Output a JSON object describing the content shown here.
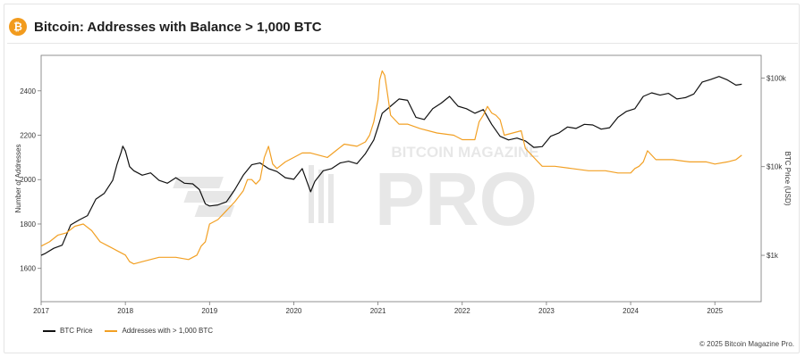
{
  "header": {
    "logo_glyph": "₿",
    "title": "Bitcoin: Addresses with Balance > 1,000 BTC"
  },
  "watermark": {
    "top_text": "BITCOIN MAGAZINE",
    "main_text": "PRO"
  },
  "credit": "© 2025 Bitcoin Magazine Pro.",
  "colors": {
    "btc_price": "#111111",
    "addresses": "#f2a024",
    "grid": "#e9e9e9",
    "axis": "#777777"
  },
  "chart_data": {
    "type": "line",
    "title": "Bitcoin: Addresses with Balance > 1,000 BTC",
    "x_tick_labels": [
      "2017",
      "2018",
      "2019",
      "2020",
      "2021",
      "2022",
      "2023",
      "2024",
      "2025"
    ],
    "xlim": [
      2017.0,
      2025.55
    ],
    "y_left": {
      "label": "Number of Addresses",
      "ticks": [
        1600,
        1800,
        2000,
        2200,
        2400
      ],
      "ylim": [
        1450,
        2560
      ]
    },
    "y_right": {
      "label": "BTC Price (USD)",
      "scale": "log",
      "ticks": [
        1000,
        10000,
        100000
      ],
      "tick_labels": [
        "$1k",
        "$10k",
        "$100k"
      ],
      "ylim": [
        300,
        180000
      ]
    },
    "grid": false,
    "legend_position": "bottom-left",
    "series": [
      {
        "name": "BTC Price",
        "axis": "right",
        "x": [
          2017.0,
          2017.05,
          2017.15,
          2017.25,
          2017.35,
          2017.45,
          2017.55,
          2017.65,
          2017.75,
          2017.85,
          2017.9,
          2017.95,
          2017.97,
          2018.0,
          2018.05,
          2018.1,
          2018.2,
          2018.3,
          2018.4,
          2018.5,
          2018.6,
          2018.7,
          2018.8,
          2018.88,
          2018.95,
          2019.0,
          2019.1,
          2019.2,
          2019.3,
          2019.4,
          2019.5,
          2019.6,
          2019.7,
          2019.8,
          2019.9,
          2020.0,
          2020.1,
          2020.2,
          2020.25,
          2020.35,
          2020.45,
          2020.55,
          2020.65,
          2020.75,
          2020.85,
          2020.95,
          2021.0,
          2021.05,
          2021.15,
          2021.25,
          2021.35,
          2021.45,
          2021.55,
          2021.65,
          2021.75,
          2021.85,
          2021.95,
          2022.05,
          2022.15,
          2022.25,
          2022.35,
          2022.45,
          2022.55,
          2022.65,
          2022.75,
          2022.85,
          2022.95,
          2023.05,
          2023.15,
          2023.25,
          2023.35,
          2023.45,
          2023.55,
          2023.65,
          2023.75,
          2023.85,
          2023.95,
          2024.05,
          2024.15,
          2024.25,
          2024.35,
          2024.45,
          2024.55,
          2024.65,
          2024.75,
          2024.85,
          2024.95,
          2025.05,
          2025.15,
          2025.25,
          2025.32
        ],
        "values": [
          1000,
          1050,
          1200,
          1300,
          2200,
          2500,
          2800,
          4300,
          5000,
          7000,
          10500,
          14500,
          17000,
          15000,
          10000,
          9000,
          8000,
          8500,
          7000,
          6500,
          7500,
          6500,
          6400,
          5500,
          3800,
          3600,
          3700,
          4000,
          5500,
          8000,
          10500,
          11000,
          9500,
          8800,
          7500,
          7200,
          9500,
          5200,
          6800,
          9000,
          9500,
          11000,
          11500,
          10800,
          14000,
          20000,
          28000,
          40000,
          48000,
          58000,
          56000,
          36000,
          34000,
          45000,
          52000,
          62000,
          48000,
          45000,
          40000,
          44000,
          30000,
          22000,
          20000,
          21000,
          19500,
          16500,
          16800,
          22000,
          24000,
          28000,
          27000,
          30000,
          29500,
          26500,
          27500,
          36000,
          42000,
          45000,
          62000,
          68000,
          64000,
          67000,
          58000,
          60000,
          66000,
          90000,
          96000,
          104000,
          95000,
          83000,
          85000
        ]
      },
      {
        "name": "Addresses with > 1,000 BTC",
        "axis": "left",
        "x": [
          2017.0,
          2017.1,
          2017.2,
          2017.3,
          2017.4,
          2017.5,
          2017.6,
          2017.7,
          2017.8,
          2017.9,
          2018.0,
          2018.05,
          2018.1,
          2018.2,
          2018.4,
          2018.6,
          2018.75,
          2018.85,
          2018.9,
          2018.95,
          2019.0,
          2019.1,
          2019.2,
          2019.25,
          2019.3,
          2019.4,
          2019.45,
          2019.5,
          2019.55,
          2019.6,
          2019.65,
          2019.7,
          2019.75,
          2019.8,
          2019.9,
          2020.0,
          2020.1,
          2020.2,
          2020.4,
          2020.5,
          2020.6,
          2020.75,
          2020.85,
          2020.9,
          2020.95,
          2021.0,
          2021.02,
          2021.05,
          2021.08,
          2021.1,
          2021.15,
          2021.25,
          2021.35,
          2021.5,
          2021.7,
          2021.9,
          2022.0,
          2022.15,
          2022.2,
          2022.25,
          2022.3,
          2022.35,
          2022.4,
          2022.45,
          2022.5,
          2022.6,
          2022.7,
          2022.75,
          2022.8,
          2022.85,
          2022.9,
          2022.95,
          2023.1,
          2023.3,
          2023.5,
          2023.7,
          2023.85,
          2024.0,
          2024.05,
          2024.1,
          2024.15,
          2024.2,
          2024.3,
          2024.5,
          2024.7,
          2024.9,
          2025.0,
          2025.15,
          2025.25,
          2025.32
        ],
        "values": [
          1700,
          1720,
          1750,
          1760,
          1790,
          1800,
          1770,
          1720,
          1700,
          1680,
          1660,
          1630,
          1620,
          1630,
          1650,
          1650,
          1640,
          1660,
          1700,
          1720,
          1800,
          1820,
          1860,
          1880,
          1900,
          1950,
          2000,
          2000,
          1980,
          2000,
          2100,
          2150,
          2070,
          2050,
          2080,
          2100,
          2120,
          2120,
          2100,
          2130,
          2160,
          2150,
          2170,
          2200,
          2260,
          2360,
          2450,
          2490,
          2470,
          2420,
          2290,
          2250,
          2250,
          2230,
          2210,
          2200,
          2180,
          2180,
          2260,
          2290,
          2330,
          2300,
          2290,
          2270,
          2200,
          2210,
          2220,
          2140,
          2120,
          2100,
          2080,
          2060,
          2060,
          2050,
          2040,
          2040,
          2030,
          2030,
          2050,
          2060,
          2080,
          2130,
          2090,
          2090,
          2080,
          2080,
          2070,
          2080,
          2090,
          2110
        ]
      }
    ]
  }
}
